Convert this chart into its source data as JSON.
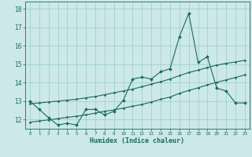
{
  "title": "",
  "xlabel": "Humidex (Indice chaleur)",
  "bg_color": "#cce8e8",
  "line_color": "#1a6b5a",
  "grid_color": "#99cccc",
  "xlim": [
    -0.5,
    23.5
  ],
  "ylim": [
    11.5,
    18.4
  ],
  "yticks": [
    12,
    13,
    14,
    15,
    16,
    17,
    18
  ],
  "xticks": [
    0,
    1,
    2,
    3,
    4,
    5,
    6,
    7,
    8,
    9,
    10,
    11,
    12,
    13,
    14,
    15,
    16,
    17,
    18,
    19,
    20,
    21,
    22,
    23
  ],
  "series1_x": [
    0,
    1,
    2,
    3,
    4,
    5,
    6,
    7,
    8,
    9,
    10,
    11,
    12,
    13,
    14,
    15,
    16,
    17,
    18,
    19,
    20,
    21,
    22,
    23
  ],
  "series1_y": [
    13.0,
    12.55,
    12.1,
    11.7,
    11.8,
    11.7,
    12.55,
    12.55,
    12.25,
    12.45,
    13.05,
    14.2,
    14.3,
    14.2,
    14.6,
    14.75,
    16.5,
    17.75,
    15.1,
    15.4,
    13.7,
    13.55,
    12.9,
    12.9
  ],
  "series2_x": [
    0,
    1,
    2,
    3,
    4,
    5,
    6,
    7,
    8,
    9,
    10,
    11,
    12,
    13,
    14,
    15,
    16,
    17,
    18,
    19,
    20,
    21,
    22,
    23
  ],
  "series2_y": [
    11.85,
    11.92,
    11.98,
    12.05,
    12.12,
    12.18,
    12.25,
    12.35,
    12.45,
    12.52,
    12.62,
    12.72,
    12.82,
    12.95,
    13.1,
    13.22,
    13.42,
    13.58,
    13.72,
    13.88,
    14.02,
    14.15,
    14.28,
    14.42
  ],
  "series3_x": [
    0,
    1,
    2,
    3,
    4,
    5,
    6,
    7,
    8,
    9,
    10,
    11,
    12,
    13,
    14,
    15,
    16,
    17,
    18,
    19,
    20,
    21,
    22,
    23
  ],
  "series3_y": [
    12.85,
    12.9,
    12.95,
    13.0,
    13.05,
    13.1,
    13.18,
    13.25,
    13.35,
    13.45,
    13.55,
    13.65,
    13.78,
    13.92,
    14.05,
    14.2,
    14.38,
    14.55,
    14.68,
    14.82,
    14.95,
    15.05,
    15.12,
    15.22
  ]
}
